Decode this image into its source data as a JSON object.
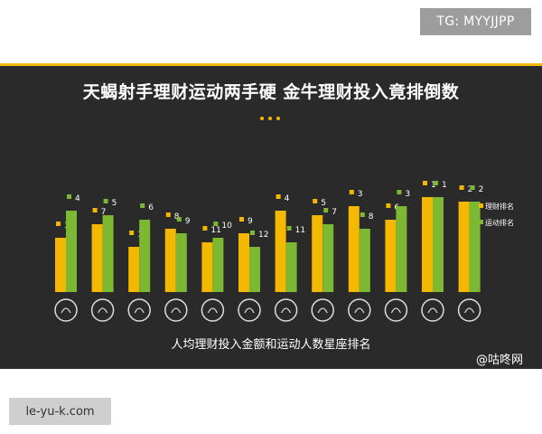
{
  "badges": {
    "top_right": "TG: MYYJJPP",
    "bottom_left": "le-yu-k.com"
  },
  "watermark": "@咕咚网",
  "colors": {
    "background": "#2a2a2a",
    "accent": "#f5b800",
    "finance": "#f5b800",
    "sport": "#7cb832"
  },
  "icons": [
    "aries-icon",
    "taurus-icon",
    "gemini-icon",
    "cancer-icon",
    "leo-icon",
    "virgo-icon",
    "libra-icon",
    "scorpio-icon",
    "sagittarius-icon",
    "capricorn-icon",
    "aquarius-icon",
    "pisces-icon"
  ],
  "chart_data": {
    "type": "bar",
    "title": "天蝎射手理财运动两手硬 金牛理财投入竟排倒数",
    "xlabel": "人均理财投入金额和运动人数星座排名",
    "ylabel": "",
    "categories": [
      "",
      "",
      "",
      "",
      "",
      "",
      "",
      "",
      "",
      "",
      "",
      ""
    ],
    "series": [
      {
        "name": "理财排名",
        "values": [
          10,
          7,
          12,
          8,
          11,
          9,
          4,
          5,
          3,
          6,
          1,
          2
        ]
      },
      {
        "name": "运动排名",
        "values": [
          4,
          5,
          6,
          9,
          10,
          12,
          11,
          7,
          8,
          3,
          1,
          2
        ]
      }
    ],
    "legend": "right",
    "grid": false,
    "note": "bar height is inversely proportional to rank (rank 1 = tallest)"
  }
}
